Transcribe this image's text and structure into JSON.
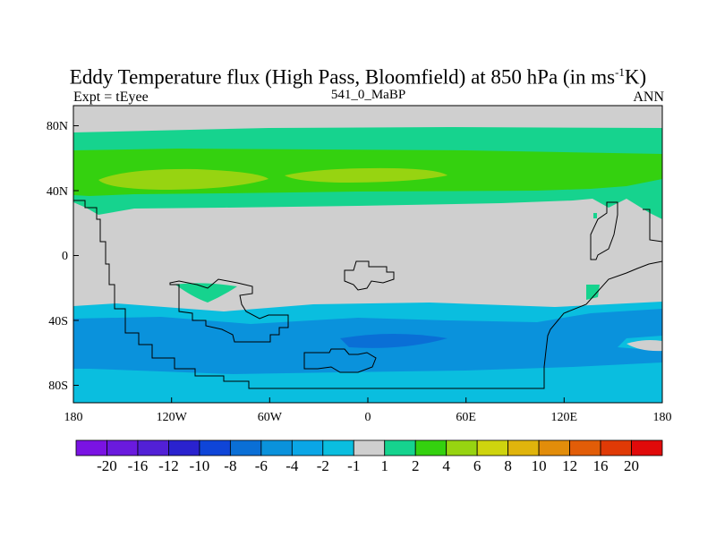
{
  "title": {
    "main": "Eddy Temperature flux (High Pass, Bloomfield) at 850 hPa (in ms",
    "sup": "-1",
    "end": "K)"
  },
  "subtitle": {
    "left": "Expt = tEyee",
    "center": "541_0_MaBP",
    "right": "ANN"
  },
  "axes": {
    "x_ticks": [
      "180",
      "120W",
      "60W",
      "0",
      "60E",
      "120E",
      "180"
    ],
    "y_ticks": [
      "80N",
      "40N",
      "0",
      "40S",
      "80S"
    ]
  },
  "colorbar": {
    "labels": [
      "-20",
      "-16",
      "-12",
      "-10",
      "-8",
      "-6",
      "-4",
      "-2",
      "-1",
      "1",
      "2",
      "4",
      "6",
      "8",
      "10",
      "12",
      "16",
      "20"
    ],
    "colors": [
      "#7a13e3",
      "#6a1ade",
      "#5220d6",
      "#2a22cf",
      "#0f45d8",
      "#0a6fd6",
      "#0a92dc",
      "#0aa6e6",
      "#0abedf",
      "#cfcfcf",
      "#16d38e",
      "#34d10f",
      "#97d411",
      "#cfd40e",
      "#e0b40c",
      "#e28d0a",
      "#e25d08",
      "#e03a06",
      "#e00a0a"
    ]
  },
  "legend_colors": {
    "neutral": "#cfcfcf",
    "green1": "#34d10f",
    "green2": "#16d38e",
    "yellowgreen": "#97d411",
    "blue1": "#0abedf",
    "blue2": "#0a92dc",
    "blue3": "#0a6fd6"
  }
}
